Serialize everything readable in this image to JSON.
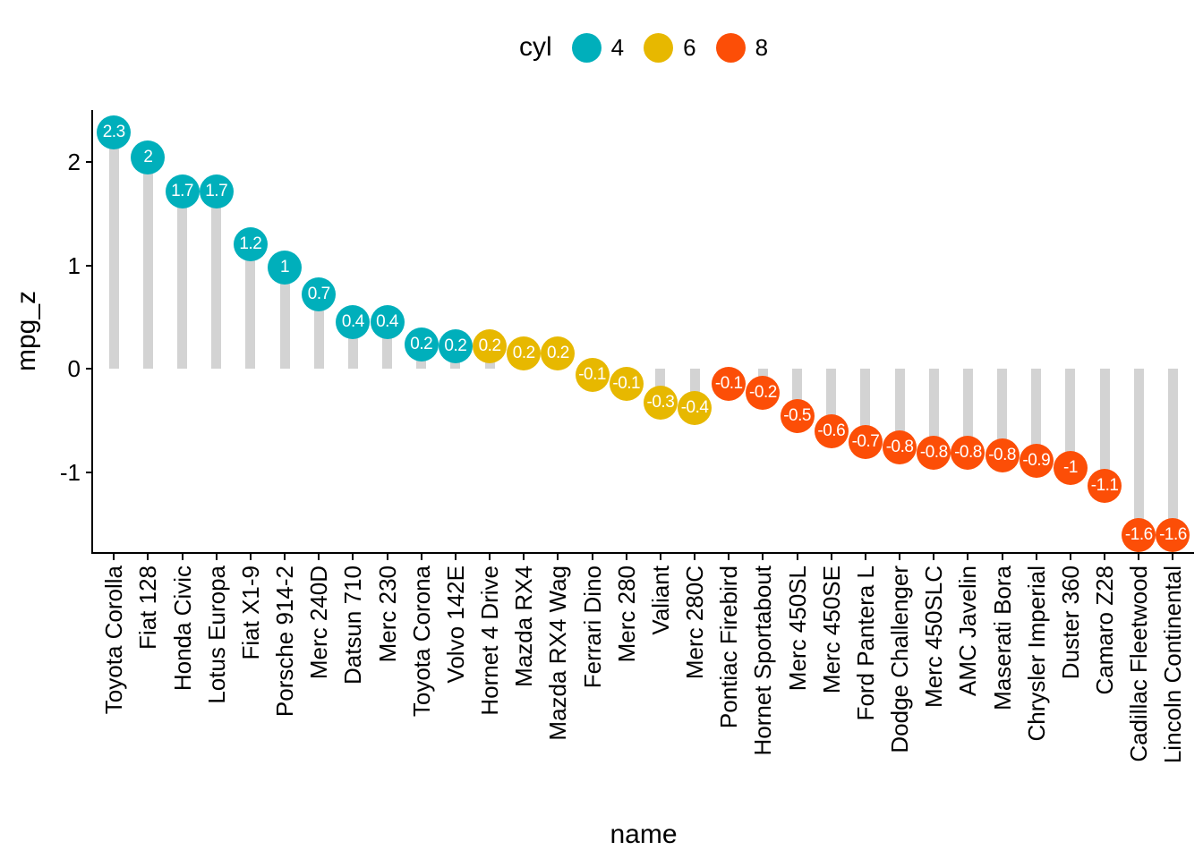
{
  "legend": {
    "title": "cyl",
    "items": [
      {
        "label": "4",
        "color": "#00AFBB"
      },
      {
        "label": "6",
        "color": "#E7B800"
      },
      {
        "label": "8",
        "color": "#FC4E07"
      }
    ]
  },
  "axes": {
    "x_title": "name",
    "y_title": "mpg_z",
    "y_ticks": [
      {
        "label": "2",
        "value": 2
      },
      {
        "label": "1",
        "value": 1
      },
      {
        "label": "0",
        "value": 0
      },
      {
        "label": "-1",
        "value": -1
      }
    ]
  },
  "colors": {
    "stem": "#D3D3D3",
    "axis": "#000000",
    "background": "#FFFFFF",
    "dot_label_text": "#FFFFFF"
  },
  "chart_data": {
    "type": "scatter",
    "variant": "lollipop",
    "title": "",
    "xlabel": "name",
    "ylabel": "mpg_z",
    "ylim": [
      -1.8,
      2.5
    ],
    "yticks": [
      2,
      1,
      0,
      -1
    ],
    "grid": false,
    "legend_position": "top-center",
    "legend_title": "cyl",
    "groups": {
      "4": "#00AFBB",
      "6": "#E7B800",
      "8": "#FC4E07"
    },
    "points": [
      {
        "name": "Toyota Corolla",
        "mpg_z": 2.29,
        "label": "2.3",
        "cyl": "4"
      },
      {
        "name": "Fiat 128",
        "mpg_z": 2.04,
        "label": "2",
        "cyl": "4"
      },
      {
        "name": "Honda Civic",
        "mpg_z": 1.71,
        "label": "1.7",
        "cyl": "4"
      },
      {
        "name": "Lotus Europa",
        "mpg_z": 1.71,
        "label": "1.7",
        "cyl": "4"
      },
      {
        "name": "Fiat X1-9",
        "mpg_z": 1.2,
        "label": "1.2",
        "cyl": "4"
      },
      {
        "name": "Porsche 914-2",
        "mpg_z": 0.98,
        "label": "1",
        "cyl": "4"
      },
      {
        "name": "Merc 240D",
        "mpg_z": 0.72,
        "label": "0.7",
        "cyl": "4"
      },
      {
        "name": "Datsun 710",
        "mpg_z": 0.45,
        "label": "0.4",
        "cyl": "4"
      },
      {
        "name": "Merc 230",
        "mpg_z": 0.45,
        "label": "0.4",
        "cyl": "4"
      },
      {
        "name": "Toyota Corona",
        "mpg_z": 0.23,
        "label": "0.2",
        "cyl": "4"
      },
      {
        "name": "Volvo 142E",
        "mpg_z": 0.22,
        "label": "0.2",
        "cyl": "4"
      },
      {
        "name": "Hornet 4 Drive",
        "mpg_z": 0.22,
        "label": "0.2",
        "cyl": "6"
      },
      {
        "name": "Mazda RX4",
        "mpg_z": 0.15,
        "label": "0.2",
        "cyl": "6"
      },
      {
        "name": "Mazda RX4 Wag",
        "mpg_z": 0.15,
        "label": "0.2",
        "cyl": "6"
      },
      {
        "name": "Ferrari Dino",
        "mpg_z": -0.06,
        "label": "-0.1",
        "cyl": "6"
      },
      {
        "name": "Merc 280",
        "mpg_z": -0.15,
        "label": "-0.1",
        "cyl": "6"
      },
      {
        "name": "Valiant",
        "mpg_z": -0.33,
        "label": "-0.3",
        "cyl": "6"
      },
      {
        "name": "Merc 280C",
        "mpg_z": -0.38,
        "label": "-0.4",
        "cyl": "6"
      },
      {
        "name": "Pontiac Firebird",
        "mpg_z": -0.15,
        "label": "-0.1",
        "cyl": "8"
      },
      {
        "name": "Hornet Sportabout",
        "mpg_z": -0.23,
        "label": "-0.2",
        "cyl": "8"
      },
      {
        "name": "Merc 450SL",
        "mpg_z": -0.46,
        "label": "-0.5",
        "cyl": "8"
      },
      {
        "name": "Merc 450SE",
        "mpg_z": -0.61,
        "label": "-0.6",
        "cyl": "8"
      },
      {
        "name": "Ford Pantera L",
        "mpg_z": -0.71,
        "label": "-0.7",
        "cyl": "8"
      },
      {
        "name": "Dodge Challenger",
        "mpg_z": -0.76,
        "label": "-0.8",
        "cyl": "8"
      },
      {
        "name": "Merc 450SLC",
        "mpg_z": -0.81,
        "label": "-0.8",
        "cyl": "8"
      },
      {
        "name": "AMC Javelin",
        "mpg_z": -0.81,
        "label": "-0.8",
        "cyl": "8"
      },
      {
        "name": "Maserati Bora",
        "mpg_z": -0.84,
        "label": "-0.8",
        "cyl": "8"
      },
      {
        "name": "Chrysler Imperial",
        "mpg_z": -0.89,
        "label": "-0.9",
        "cyl": "8"
      },
      {
        "name": "Duster 360",
        "mpg_z": -0.96,
        "label": "-1",
        "cyl": "8"
      },
      {
        "name": "Camaro Z28",
        "mpg_z": -1.13,
        "label": "-1.1",
        "cyl": "8"
      },
      {
        "name": "Cadillac Fleetwood",
        "mpg_z": -1.61,
        "label": "-1.6",
        "cyl": "8"
      },
      {
        "name": "Lincoln Continental",
        "mpg_z": -1.61,
        "label": "-1.6",
        "cyl": "8"
      }
    ]
  }
}
